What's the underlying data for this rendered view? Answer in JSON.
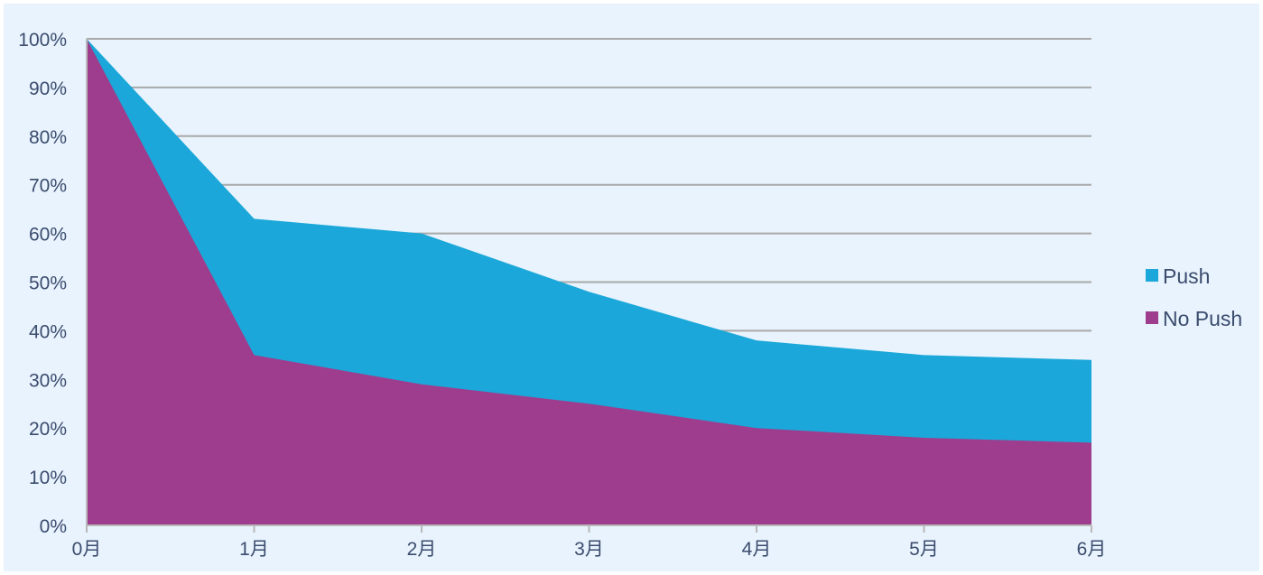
{
  "chart_data": {
    "type": "area",
    "categories": [
      "0月",
      "1月",
      "2月",
      "3月",
      "4月",
      "5月",
      "6月"
    ],
    "y_tick_labels": [
      "0%",
      "10%",
      "20%",
      "30%",
      "40%",
      "50%",
      "60%",
      "70%",
      "80%",
      "90%",
      "100%"
    ],
    "ylim": [
      0,
      100
    ],
    "grid": true,
    "legend_position": "right",
    "series": [
      {
        "name": "Push",
        "values": [
          100,
          63,
          60,
          48,
          38,
          35,
          34
        ],
        "color": "#1ba7d9"
      },
      {
        "name": "No Push",
        "values": [
          100,
          35,
          29,
          25,
          20,
          18,
          17
        ],
        "color": "#9e3d8d"
      }
    ]
  }
}
